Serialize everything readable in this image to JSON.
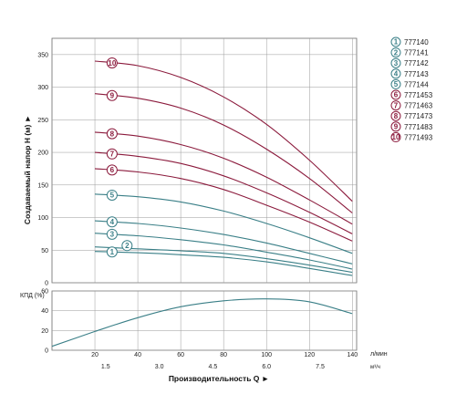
{
  "colors": {
    "teal": "#3a7f87",
    "maroon": "#8b1a3c",
    "grid": "#9a9a9a",
    "frame": "#6a6a6a"
  },
  "chart_data": [
    {
      "type": "line",
      "ylabel": "Создаваемый напор H (м) ►",
      "xlim": [
        0,
        142
      ],
      "ylim": [
        0,
        375
      ],
      "yticks": [
        0,
        50,
        100,
        150,
        200,
        250,
        300,
        350
      ],
      "x": [
        0,
        20,
        40,
        60,
        80,
        100,
        120,
        140
      ],
      "series": [
        {
          "name": "777140",
          "marker": "1",
          "color": "teal",
          "values": [
            null,
            48,
            46,
            43,
            39,
            32,
            22,
            11
          ]
        },
        {
          "name": "777141",
          "marker": "2",
          "color": "teal",
          "values": [
            null,
            55,
            52,
            49,
            45,
            37,
            27,
            16
          ]
        },
        {
          "name": "777142",
          "marker": "3",
          "color": "teal",
          "values": [
            null,
            76,
            72,
            66,
            58,
            47,
            35,
            21
          ]
        },
        {
          "name": "777143",
          "marker": "4",
          "color": "teal",
          "values": [
            null,
            95,
            91,
            84,
            74,
            61,
            45,
            29
          ]
        },
        {
          "name": "777144",
          "marker": "5",
          "color": "teal",
          "values": [
            null,
            136,
            132,
            124,
            110,
            91,
            69,
            45
          ]
        },
        {
          "name": "7771453",
          "marker": "6",
          "color": "maroon",
          "values": [
            null,
            175,
            170,
            160,
            143,
            119,
            93,
            64
          ]
        },
        {
          "name": "7771463",
          "marker": "7",
          "color": "maroon",
          "values": [
            null,
            200,
            194,
            183,
            164,
            138,
            108,
            75
          ]
        },
        {
          "name": "7771473",
          "marker": "8",
          "color": "maroon",
          "values": [
            null,
            231,
            225,
            212,
            191,
            162,
            127,
            90
          ]
        },
        {
          "name": "7771483",
          "marker": "9",
          "color": "maroon",
          "values": [
            null,
            290,
            283,
            268,
            242,
            205,
            160,
            107
          ]
        },
        {
          "name": "7771493",
          "marker": "10",
          "color": "maroon",
          "values": [
            null,
            340,
            333,
            315,
            285,
            243,
            188,
            125
          ]
        }
      ],
      "legend_position": "right"
    },
    {
      "type": "line",
      "ylabel": "КПД (%)",
      "xlabel": "Производительность Q ►",
      "xlim": [
        0,
        142
      ],
      "ylim": [
        0,
        60
      ],
      "yticks": [
        0,
        20,
        40,
        60
      ],
      "x_ticks_lpm": [
        20,
        40,
        60,
        80,
        100,
        120,
        140
      ],
      "x_ticks_m3h": [
        "1.5",
        "3.0",
        "4.5",
        "6.0",
        "7.5"
      ],
      "x_ticks_m3h_values": [
        25,
        50,
        75,
        100,
        125
      ],
      "unit_lpm": "л/мин",
      "unit_m3h": "м³/ч",
      "x": [
        0,
        20,
        40,
        60,
        80,
        100,
        120,
        140
      ],
      "series": [
        {
          "color": "teal",
          "values": [
            4,
            19,
            33,
            44,
            50,
            52,
            49,
            37
          ]
        }
      ]
    }
  ]
}
